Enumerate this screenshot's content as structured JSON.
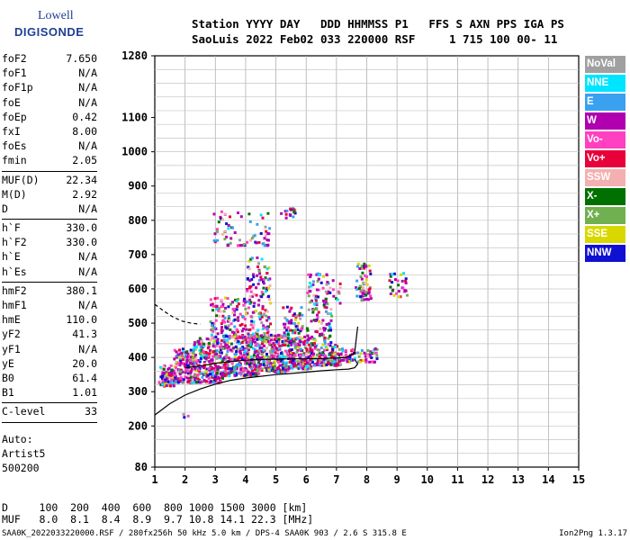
{
  "logo": {
    "line1": "Lowell",
    "line2": "DIGISONDE"
  },
  "header": {
    "line1": "Station YYYY DAY   DDD HHMMSS P1   FFS S AXN PPS IGA PS",
    "line2": "SaoLuis 2022 Feb02 033 220000 RSF     1 715 100 00- 11"
  },
  "params": [
    {
      "label": "foF2",
      "value": "7.650"
    },
    {
      "label": "foF1",
      "value": "N/A"
    },
    {
      "label": "foF1p",
      "value": "N/A"
    },
    {
      "label": "foE",
      "value": "N/A"
    },
    {
      "label": "foEp",
      "value": "0.42"
    },
    {
      "label": "fxI",
      "value": "8.00"
    },
    {
      "label": "foEs",
      "value": "N/A"
    },
    {
      "label": "fmin",
      "value": "2.05"
    },
    {
      "sep": true
    },
    {
      "label": "MUF(D)",
      "value": "22.34"
    },
    {
      "label": "M(D)",
      "value": "2.92"
    },
    {
      "label": "D",
      "value": "N/A"
    },
    {
      "sep": true
    },
    {
      "label": "h`F",
      "value": "330.0"
    },
    {
      "label": "h`F2",
      "value": "330.0"
    },
    {
      "label": "h`E",
      "value": "N/A"
    },
    {
      "label": "h`Es",
      "value": "N/A"
    },
    {
      "sep": true
    },
    {
      "label": "hmF2",
      "value": "380.1"
    },
    {
      "label": "hmF1",
      "value": "N/A"
    },
    {
      "label": "hmE",
      "value": "110.0"
    },
    {
      "label": "yF2",
      "value": "41.3"
    },
    {
      "label": "yF1",
      "value": "N/A"
    },
    {
      "label": "yE",
      "value": "20.0"
    },
    {
      "label": "B0",
      "value": "61.4"
    },
    {
      "label": "B1",
      "value": "1.01"
    },
    {
      "sep": true
    },
    {
      "label": "C-level",
      "value": "33"
    },
    {
      "sep": true
    }
  ],
  "auto": {
    "l1": "Auto:",
    "l2": "Artist5",
    "l3": "500200"
  },
  "legend": [
    {
      "label": "NoVal",
      "bg": "#a0a0a0",
      "fg": "#ffffff"
    },
    {
      "label": "NNE",
      "bg": "#00e5ff",
      "fg": "#ffffff"
    },
    {
      "label": "E",
      "bg": "#3aa0f0",
      "fg": "#ffffff"
    },
    {
      "label": "W",
      "bg": "#b000b0",
      "fg": "#ffffff"
    },
    {
      "label": "Vo-",
      "bg": "#ff40c0",
      "fg": "#ffffff"
    },
    {
      "label": "Vo+",
      "bg": "#e8003a",
      "fg": "#ffffff"
    },
    {
      "label": "SSW",
      "bg": "#f4b0b0",
      "fg": "#ffffff"
    },
    {
      "label": "X-",
      "bg": "#007000",
      "fg": "#ffffff"
    },
    {
      "label": "X+",
      "bg": "#70b050",
      "fg": "#ffffff"
    },
    {
      "label": "SSE",
      "bg": "#d8d800",
      "fg": "#ffffff"
    },
    {
      "label": "NNW",
      "bg": "#1010d0",
      "fg": "#ffffff"
    }
  ],
  "chart_data": {
    "type": "scatter",
    "xlabel": "",
    "ylabel": "",
    "xlim": [
      1,
      15
    ],
    "ylim": [
      80,
      1280
    ],
    "x_ticks": [
      "1",
      "2",
      "3",
      "4",
      "5",
      "6",
      "7",
      "8",
      "9",
      "10",
      "11",
      "12",
      "13",
      "14",
      "15"
    ],
    "y_ticks": [
      {
        "v": 80,
        "label": "80"
      },
      {
        "v": 200,
        "label": "200"
      },
      {
        "v": 300,
        "label": "300"
      },
      {
        "v": 400,
        "label": "400"
      },
      {
        "v": 500,
        "label": "500"
      },
      {
        "v": 600,
        "label": "600"
      },
      {
        "v": 700,
        "label": "700"
      },
      {
        "v": 800,
        "label": "800"
      },
      {
        "v": 900,
        "label": "900"
      },
      {
        "v": 1000,
        "label": "1000"
      },
      {
        "v": 1100,
        "label": "1100"
      },
      {
        "v": 1280,
        "label": "1280"
      }
    ],
    "grid": true,
    "echo_clusters": [
      {
        "x": [
          1.1,
          1.6
        ],
        "y": [
          320,
          380
        ],
        "n": 90
      },
      {
        "x": [
          1.6,
          2.2
        ],
        "y": [
          330,
          430
        ],
        "n": 140
      },
      {
        "x": [
          2.2,
          3.2
        ],
        "y": [
          330,
          460
        ],
        "n": 260
      },
      {
        "x": [
          3.2,
          4.4
        ],
        "y": [
          350,
          470
        ],
        "n": 320
      },
      {
        "x": [
          4.4,
          5.4
        ],
        "y": [
          360,
          470
        ],
        "n": 240
      },
      {
        "x": [
          5.4,
          6.2
        ],
        "y": [
          370,
          460
        ],
        "n": 170
      },
      {
        "x": [
          6.2,
          7.1
        ],
        "y": [
          380,
          440
        ],
        "n": 130
      },
      {
        "x": [
          7.1,
          8.3
        ],
        "y": [
          390,
          430
        ],
        "n": 70
      },
      {
        "x": [
          2.8,
          4.8
        ],
        "y": [
          460,
          580
        ],
        "n": 200
      },
      {
        "x": [
          4.0,
          4.8
        ],
        "y": [
          580,
          700
        ],
        "n": 60
      },
      {
        "x": [
          5.2,
          6.8
        ],
        "y": [
          440,
          560
        ],
        "n": 140
      },
      {
        "x": [
          6.0,
          7.1
        ],
        "y": [
          560,
          650
        ],
        "n": 60
      },
      {
        "x": [
          7.6,
          8.1
        ],
        "y": [
          570,
          680
        ],
        "n": 60
      },
      {
        "x": [
          8.7,
          9.3
        ],
        "y": [
          580,
          650
        ],
        "n": 30
      },
      {
        "x": [
          2.9,
          4.8
        ],
        "y": [
          730,
          830
        ],
        "n": 70
      },
      {
        "x": [
          5.1,
          5.6
        ],
        "y": [
          810,
          840
        ],
        "n": 15
      },
      {
        "x": [
          1.9,
          2.1
        ],
        "y": [
          220,
          240
        ],
        "n": 3
      }
    ],
    "series": [
      {
        "name": "",
        "type": "line",
        "x": [
          1.0,
          1.5,
          2.0,
          2.5,
          3.0,
          3.5,
          4.0,
          4.5,
          5.0,
          5.5,
          6.0,
          6.5,
          7.0,
          7.4,
          7.6,
          7.7,
          7.6
        ],
        "y": [
          232,
          265,
          290,
          308,
          322,
          333,
          340,
          345,
          350,
          353,
          357,
          361,
          364,
          366,
          370,
          381,
          395
        ]
      },
      {
        "name": "",
        "type": "line",
        "x": [
          2.0,
          2.5,
          3.0,
          3.5,
          4.0,
          4.5,
          5.0,
          5.5,
          6.0,
          6.5,
          7.0,
          7.3,
          7.6,
          7.7
        ],
        "y": [
          370,
          375,
          383,
          388,
          392,
          394,
          395,
          396,
          396,
          397,
          398,
          400,
          412,
          490
        ]
      },
      {
        "name": "",
        "type": "line",
        "dashed": true,
        "x": [
          1.0,
          1.3,
          1.6,
          1.9,
          2.2,
          2.5
        ],
        "y": [
          555,
          535,
          518,
          506,
          500,
          497
        ]
      }
    ]
  },
  "d_muf": {
    "d_row": "D     100  200  400  600  800 1000 1500 3000 [km]",
    "muf_row": "MUF   8.0  8.1  8.4  8.9  9.7 10.8 14.1 22.3 [MHz]"
  },
  "footer": {
    "left": "SAA0K_2022033220000.RSF / 280fx256h 50 kHz 5.0 km / DPS-4 SAA0K 903 / 2.6 S 315.8 E",
    "right": "Ion2Png 1.3.17"
  }
}
